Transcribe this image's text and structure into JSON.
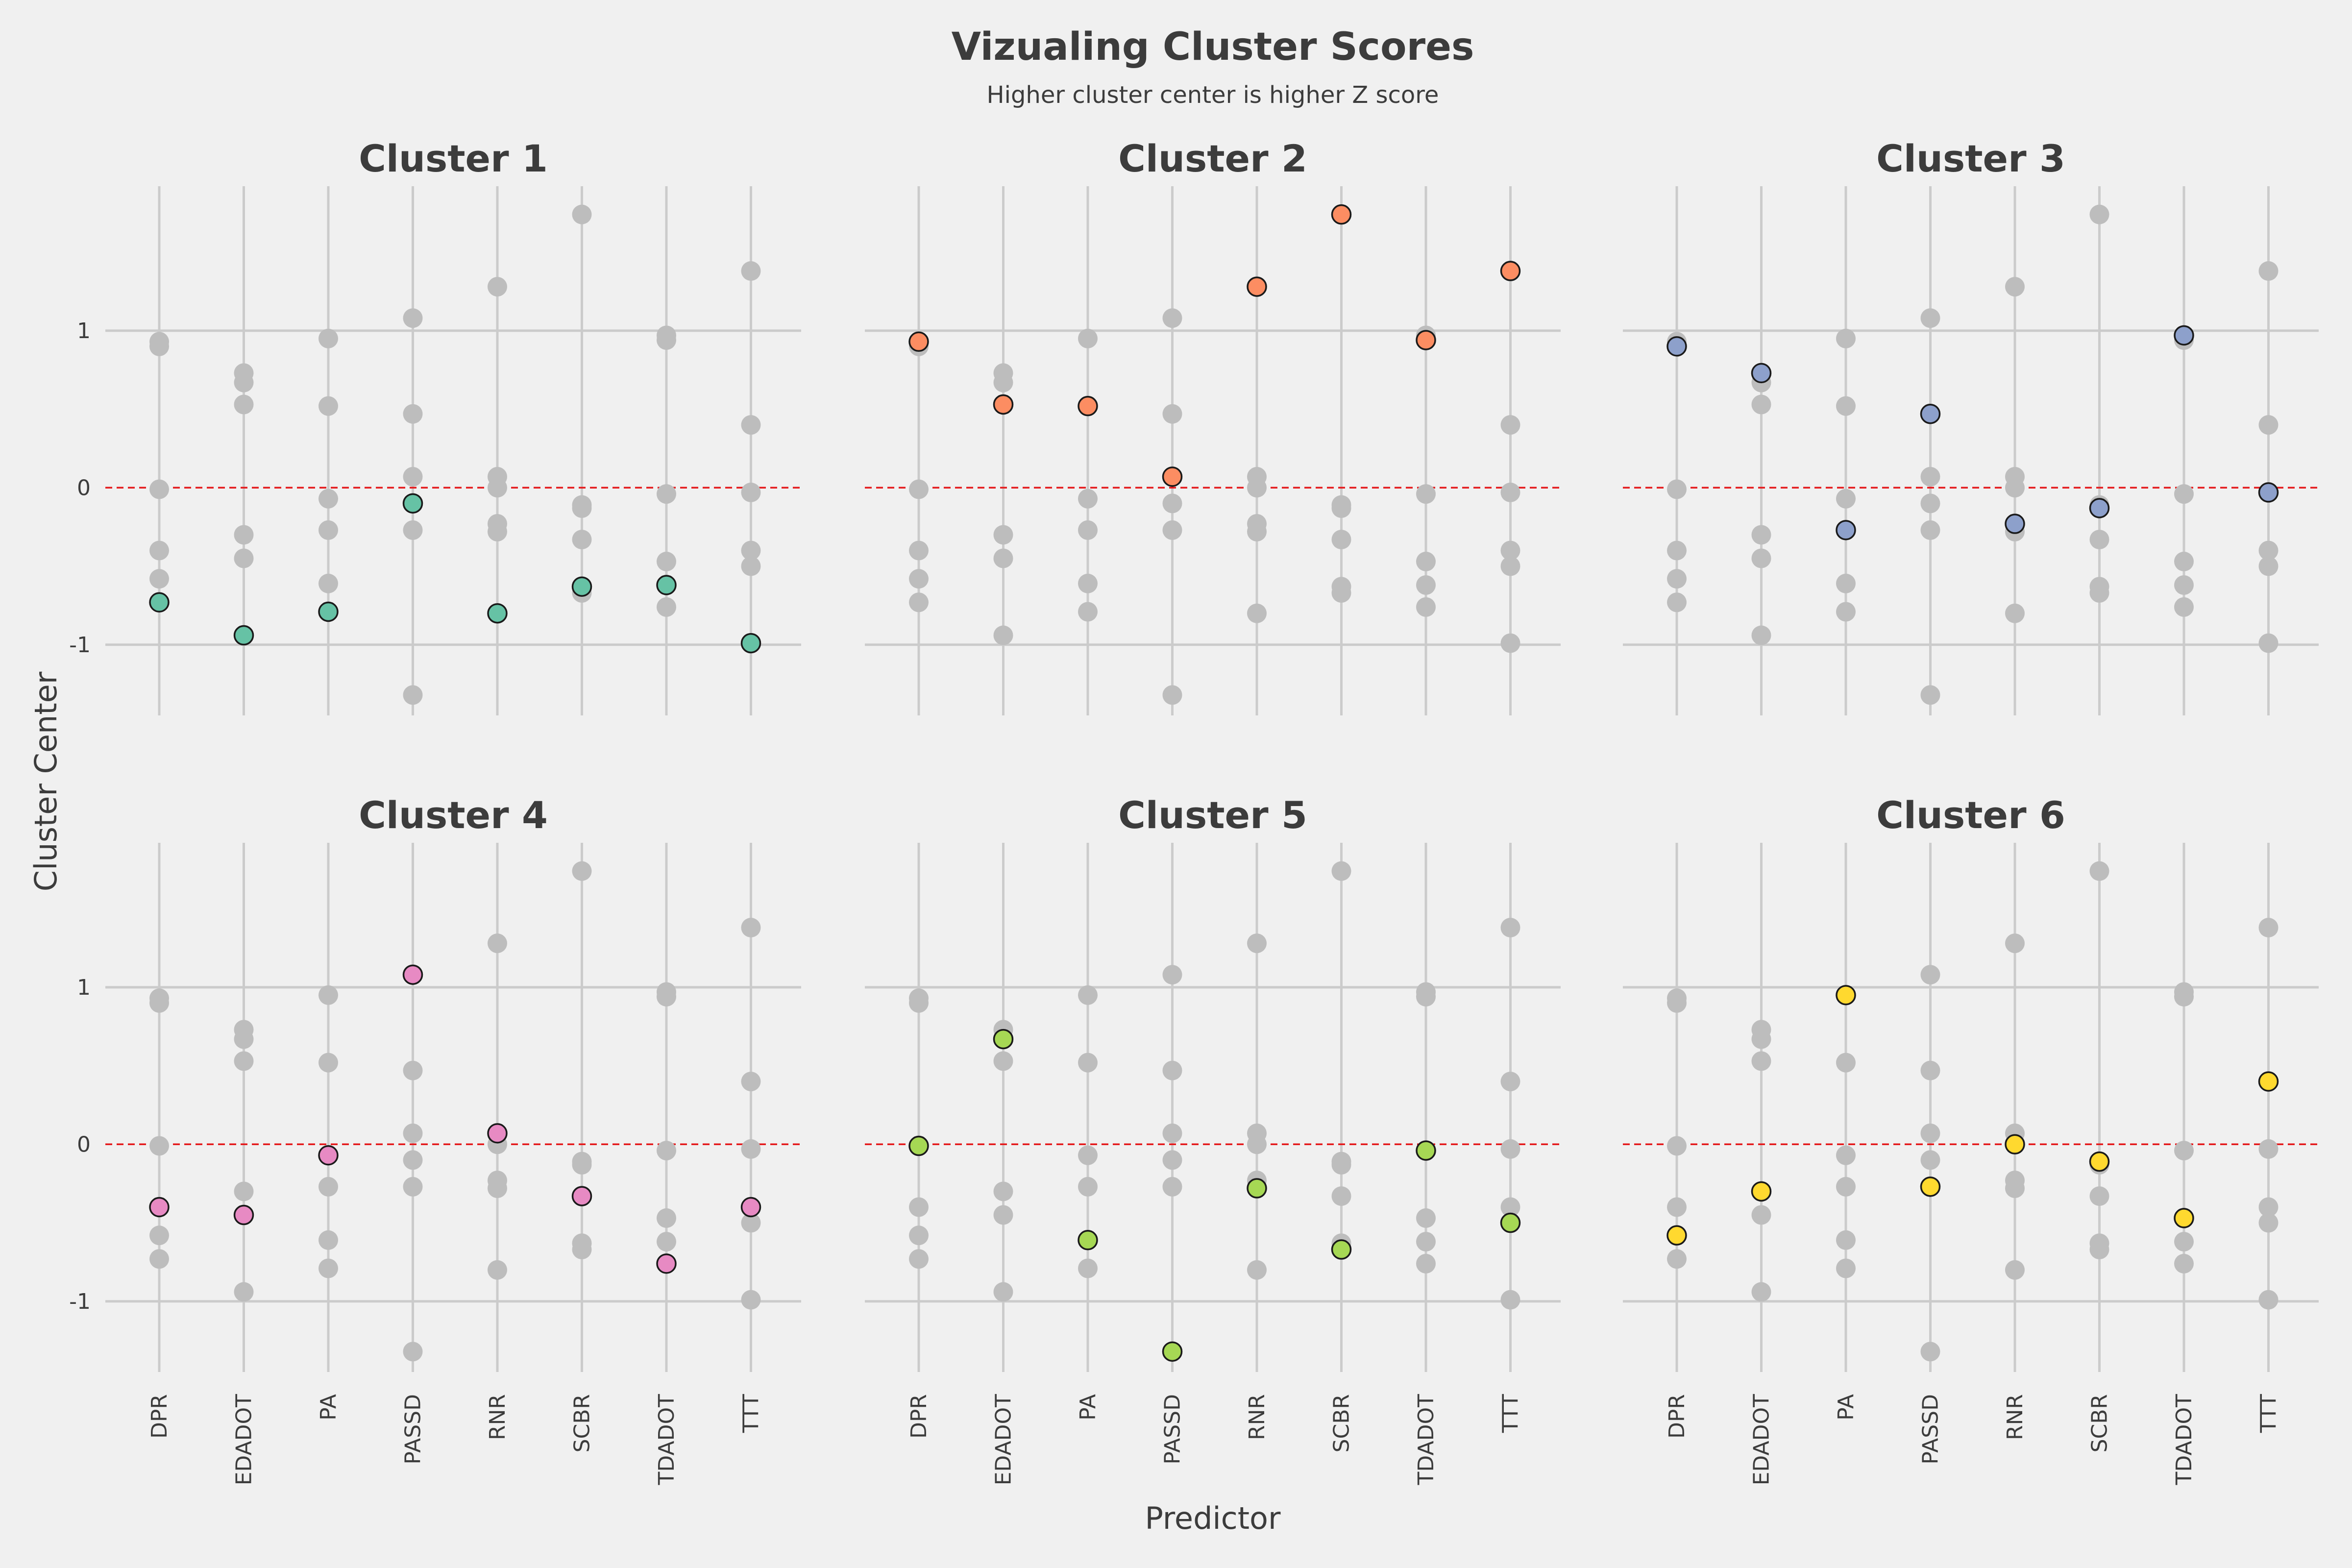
{
  "title": "Vizualing Cluster Scores",
  "subtitle": "Higher cluster center is higher Z score",
  "xlabel": "Predictor",
  "ylabel": "Cluster Center",
  "chart_data": {
    "type": "scatter",
    "layout": "facet grid 2 rows x 3 columns",
    "categories": [
      "DPR",
      "EDADOT",
      "PA",
      "PASSD",
      "RNR",
      "SCBR",
      "TDADOT",
      "TTT"
    ],
    "yticks": [
      -1,
      0,
      1
    ],
    "ylim": [
      -1.45,
      1.92
    ],
    "reference_line": {
      "y": 0,
      "style": "dashed",
      "color": "#e41a1c"
    },
    "background_color": "#bdbdbd",
    "grid": true,
    "series": [
      {
        "name": "Cluster 1",
        "color": "#66c2a5",
        "values": [
          -0.73,
          -0.94,
          -0.79,
          -0.1,
          -0.8,
          -0.63,
          -0.62,
          -0.99
        ]
      },
      {
        "name": "Cluster 2",
        "color": "#fc8d62",
        "values": [
          0.93,
          0.53,
          0.52,
          0.07,
          1.28,
          1.74,
          0.94,
          1.38
        ]
      },
      {
        "name": "Cluster 3",
        "color": "#8da0cb",
        "values": [
          0.9,
          0.73,
          -0.27,
          0.47,
          -0.23,
          -0.13,
          0.97,
          -0.03
        ]
      },
      {
        "name": "Cluster 4",
        "color": "#e78ac3",
        "values": [
          -0.4,
          -0.45,
          -0.07,
          1.08,
          0.07,
          -0.33,
          -0.76,
          -0.4
        ]
      },
      {
        "name": "Cluster 5",
        "color": "#a6d854",
        "values": [
          -0.01,
          0.67,
          -0.61,
          -1.32,
          -0.28,
          -0.67,
          -0.04,
          -0.5
        ]
      },
      {
        "name": "Cluster 6",
        "color": "#ffd92f",
        "values": [
          -0.58,
          -0.3,
          0.95,
          -0.27,
          0.0,
          -0.11,
          -0.47,
          0.4
        ]
      }
    ]
  }
}
